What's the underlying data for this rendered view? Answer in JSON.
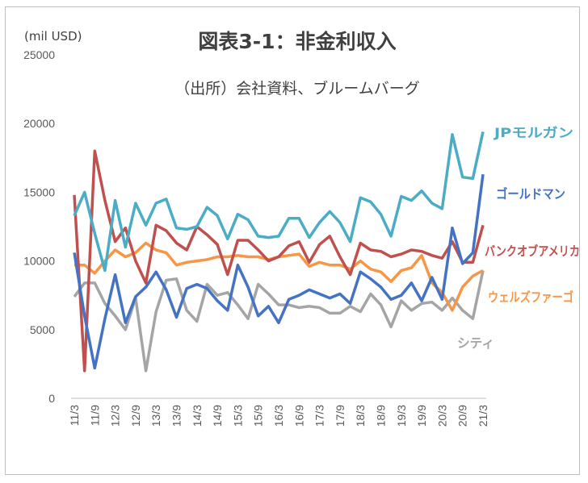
{
  "chart_data": {
    "type": "line",
    "title": "図表3-1：非金利収入",
    "subtitle": "（出所）会社資料、ブルームバーグ",
    "unit_label": "(mil USD)",
    "ylim": [
      0,
      25000
    ],
    "y_ticks": [
      "0",
      "5000",
      "10000",
      "15000",
      "20000",
      "25000"
    ],
    "x_tick_labels": [
      "11/3",
      "11/9",
      "12/3",
      "12/9",
      "13/3",
      "13/9",
      "14/3",
      "14/9",
      "15/3",
      "15/9",
      "16/3",
      "16/9",
      "17/3",
      "17/9",
      "18/3",
      "18/9",
      "19/3",
      "19/9",
      "20/3",
      "20/9",
      "21/3"
    ],
    "grid": false,
    "series": [
      {
        "name": "JPモルガン",
        "color": "#4bacc6",
        "values": [
          13300,
          15000,
          12000,
          9300,
          14400,
          11000,
          14200,
          12600,
          14200,
          14500,
          12400,
          12300,
          12500,
          13900,
          13300,
          11600,
          13400,
          13000,
          11800,
          11700,
          11800,
          13100,
          13100,
          11700,
          12800,
          13600,
          12800,
          11400,
          14600,
          14300,
          13400,
          11800,
          14700,
          14400,
          15100,
          14200,
          13800,
          19200,
          16100,
          16000,
          19400
        ]
      },
      {
        "name": "ゴールドマン",
        "color": "#4472c4",
        "values": [
          10600,
          6000,
          2200,
          5800,
          9000,
          5500,
          7400,
          8100,
          9200,
          7900,
          5900,
          8000,
          8300,
          8000,
          7100,
          6400,
          9700,
          8100,
          6000,
          6700,
          5500,
          7200,
          7500,
          7900,
          7600,
          7300,
          7600,
          6900,
          9200,
          8700,
          8100,
          7200,
          7500,
          8400,
          7100,
          8800,
          7200,
          12400,
          9800,
          10600,
          16300
        ]
      },
      {
        "name": "バンクオブアメリカ",
        "color": "#c0504d",
        "values": [
          14800,
          2000,
          18000,
          14400,
          11400,
          12400,
          10000,
          8400,
          12600,
          12200,
          11300,
          10800,
          12500,
          11900,
          11200,
          9000,
          11500,
          11500,
          10800,
          10000,
          10300,
          11100,
          11400,
          9900,
          11200,
          11800,
          10300,
          9000,
          11300,
          10800,
          10700,
          10300,
          10500,
          10800,
          10700,
          10400,
          10200,
          11400,
          9900,
          9900,
          12600
        ]
      },
      {
        "name": "ウェルズファーゴ",
        "color": "#f79646",
        "values": [
          9700,
          9700,
          9100,
          10000,
          10800,
          10300,
          10600,
          11300,
          10800,
          10600,
          9700,
          9900,
          10000,
          10100,
          10300,
          10300,
          10400,
          10300,
          10300,
          10100,
          10300,
          10400,
          10500,
          9600,
          9900,
          9700,
          9700,
          9400,
          10000,
          9400,
          9200,
          8500,
          9300,
          9500,
          10400,
          8400,
          7700,
          6400,
          8100,
          8900,
          9300
        ]
      },
      {
        "name": "シティ",
        "color": "#a5a5a5",
        "values": [
          7400,
          8400,
          8400,
          6900,
          6000,
          5000,
          7300,
          2000,
          6300,
          8600,
          8700,
          6400,
          5600,
          8300,
          7500,
          7700,
          6800,
          5800,
          8300,
          7600,
          6800,
          6800,
          6600,
          6700,
          6600,
          6200,
          6200,
          6700,
          6300,
          7600,
          6800,
          5200,
          7100,
          6400,
          6900,
          7000,
          6400,
          7300,
          6400,
          5800,
          9300
        ]
      }
    ]
  }
}
